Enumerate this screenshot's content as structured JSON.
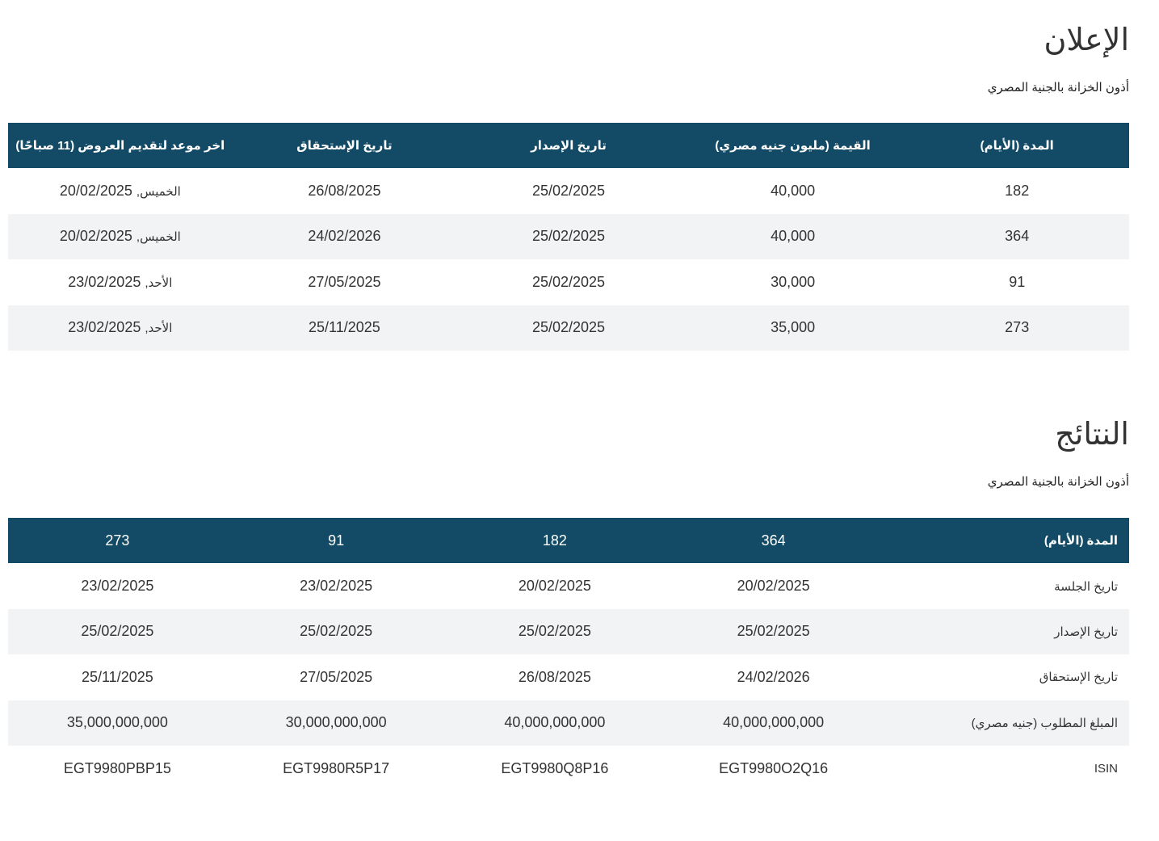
{
  "announcement": {
    "title": "الإعلان",
    "subtitle": "أذون الخزانة بالجنية المصري",
    "headers": [
      "المدة (الأيام)",
      "القيمة (مليون جنيه مصري)",
      "تاريخ الإصدار",
      "تاريخ الإستحقاق",
      "اخر موعد لتقديم العروض (11 صباحًا)"
    ],
    "rows": [
      {
        "tenor": "182",
        "amount": "40,000",
        "issue_date": "25/02/2025",
        "maturity_date": "26/08/2025",
        "deadline_day": "الخميس,",
        "deadline_date": "20/02/2025"
      },
      {
        "tenor": "364",
        "amount": "40,000",
        "issue_date": "25/02/2025",
        "maturity_date": "24/02/2026",
        "deadline_day": "الخميس,",
        "deadline_date": "20/02/2025"
      },
      {
        "tenor": "91",
        "amount": "30,000",
        "issue_date": "25/02/2025",
        "maturity_date": "27/05/2025",
        "deadline_day": "الأحد,",
        "deadline_date": "23/02/2025"
      },
      {
        "tenor": "273",
        "amount": "35,000",
        "issue_date": "25/02/2025",
        "maturity_date": "25/11/2025",
        "deadline_day": "الأحد,",
        "deadline_date": "23/02/2025"
      }
    ]
  },
  "results": {
    "title": "النتائج",
    "subtitle": "أذون الخزانة بالجنية المصري",
    "header_label": "المدة (الأيام)",
    "tenors": [
      "364",
      "182",
      "91",
      "273"
    ],
    "rows": [
      {
        "label": "تاريخ الجلسة",
        "values": [
          "20/02/2025",
          "20/02/2025",
          "23/02/2025",
          "23/02/2025"
        ]
      },
      {
        "label": "تاريخ الإصدار",
        "values": [
          "25/02/2025",
          "25/02/2025",
          "25/02/2025",
          "25/02/2025"
        ]
      },
      {
        "label": "تاريخ الإستحقاق",
        "values": [
          "24/02/2026",
          "26/08/2025",
          "27/05/2025",
          "25/11/2025"
        ]
      },
      {
        "label": "المبلغ المطلوب (جنيه مصري)",
        "values": [
          "40,000,000,000",
          "40,000,000,000",
          "30,000,000,000",
          "35,000,000,000"
        ]
      },
      {
        "label": "ISIN",
        "values": [
          "EGT9980O2Q16",
          "EGT9980Q8P16",
          "EGT9980R5P17",
          "EGT9980PBP15"
        ]
      }
    ]
  },
  "colors": {
    "header_bg": "#134b67",
    "header_text": "#ffffff",
    "alt_row_bg": "#f2f3f4",
    "text": "#333333"
  }
}
